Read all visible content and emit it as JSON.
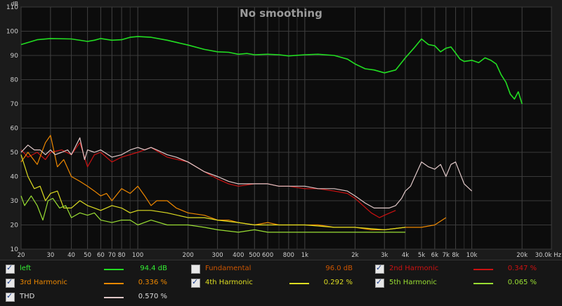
{
  "chart_data": {
    "type": "line",
    "title": "No smoothing",
    "ylabel": "dB",
    "xlabel": "Hz",
    "x_scale": "log",
    "xlim": [
      20,
      30000
    ],
    "ylim": [
      10,
      110
    ],
    "y_ticks": [
      10,
      20,
      30,
      40,
      50,
      60,
      70,
      80,
      90,
      100,
      110
    ],
    "x_ticks": [
      {
        "v": 20,
        "label": "20"
      },
      {
        "v": 30,
        "label": "30"
      },
      {
        "v": 40,
        "label": "40"
      },
      {
        "v": 50,
        "label": "50"
      },
      {
        "v": 60,
        "label": "60"
      },
      {
        "v": 70,
        "label": "70"
      },
      {
        "v": 80,
        "label": "80"
      },
      {
        "v": 100,
        "label": "100"
      },
      {
        "v": 200,
        "label": "200"
      },
      {
        "v": 300,
        "label": "300"
      },
      {
        "v": 400,
        "label": "400"
      },
      {
        "v": 500,
        "label": "500"
      },
      {
        "v": 600,
        "label": "600"
      },
      {
        "v": 800,
        "label": "800"
      },
      {
        "v": 1000,
        "label": "1k"
      },
      {
        "v": 2000,
        "label": "2k"
      },
      {
        "v": 3000,
        "label": "3k"
      },
      {
        "v": 4000,
        "label": "4k"
      },
      {
        "v": 5000,
        "label": "5k"
      },
      {
        "v": 6000,
        "label": "6k"
      },
      {
        "v": 7000,
        "label": "7k"
      },
      {
        "v": 8000,
        "label": "8k"
      },
      {
        "v": 10000,
        "label": "10k"
      },
      {
        "v": 20000,
        "label": "20k"
      },
      {
        "v": 30000,
        "label": "30.0k Hz"
      }
    ],
    "grid": true,
    "series": [
      {
        "name": "left",
        "color": "#22dd22",
        "x": [
          20,
          25,
          30,
          40,
          50,
          55,
          60,
          70,
          80,
          90,
          100,
          120,
          150,
          200,
          250,
          300,
          350,
          400,
          450,
          500,
          600,
          700,
          800,
          1000,
          1200,
          1500,
          1800,
          2000,
          2300,
          2600,
          3000,
          3500,
          4000,
          4500,
          5000,
          5500,
          6000,
          6500,
          7000,
          7500,
          8000,
          8500,
          9000,
          10000,
          11000,
          12000,
          13000,
          14000,
          15000,
          16000,
          17000,
          18000,
          19000,
          20000
        ],
        "y": [
          94.5,
          96.5,
          97,
          96.8,
          95.8,
          96.3,
          97,
          96.3,
          96.5,
          97.5,
          97.8,
          97.5,
          96.3,
          94.3,
          92.5,
          91.5,
          91.3,
          90.5,
          90.8,
          90.3,
          90.5,
          90.3,
          89.8,
          90.3,
          90.5,
          90,
          88.5,
          86.5,
          84.5,
          84,
          82.8,
          84,
          89,
          93,
          96.8,
          94.5,
          94,
          91.5,
          93,
          93.5,
          91,
          88.5,
          87.5,
          88,
          87,
          89,
          88,
          86.5,
          82,
          79,
          74,
          72,
          75,
          70
        ]
      },
      {
        "name": "2nd Harmonic",
        "color": "#cc1111",
        "x": [
          20,
          22,
          25,
          28,
          30,
          35,
          40,
          45,
          50,
          55,
          60,
          70,
          80,
          100,
          120,
          150,
          200,
          250,
          300,
          350,
          400,
          500,
          600,
          700,
          800,
          1000,
          1200,
          1500,
          1800,
          2000,
          2500,
          2800,
          3000,
          3500
        ],
        "y": [
          51,
          48,
          50,
          47,
          50,
          51,
          49,
          54,
          44,
          49,
          50,
          46,
          48,
          50,
          52,
          48,
          46,
          42,
          39,
          37,
          36,
          37,
          37,
          36,
          36,
          35,
          35,
          34,
          33,
          31,
          25,
          23,
          24,
          26
        ]
      },
      {
        "name": "3rd Harmonic",
        "color": "#ee8800",
        "x": [
          20,
          22,
          25,
          28,
          30,
          33,
          36,
          40,
          45,
          50,
          55,
          60,
          65,
          70,
          80,
          90,
          100,
          110,
          120,
          130,
          150,
          170,
          200,
          250,
          300,
          350,
          400,
          500,
          600,
          700,
          800,
          1000,
          1200,
          1500,
          2000,
          2500,
          3000,
          4000,
          5000,
          6000,
          7000
        ],
        "y": [
          46,
          50,
          45,
          54,
          57,
          44,
          47,
          40,
          38,
          36,
          34,
          32,
          33,
          30,
          35,
          33,
          36,
          32,
          28,
          30,
          30,
          27,
          25,
          24,
          22,
          22,
          21,
          20,
          21,
          20,
          20,
          20,
          20,
          19,
          19,
          18,
          18,
          19,
          19,
          20,
          23
        ]
      },
      {
        "name": "4th Harmonic",
        "color": "#dddd22",
        "x": [
          20,
          22,
          24,
          26,
          28,
          30,
          33,
          36,
          40,
          45,
          50,
          55,
          60,
          70,
          80,
          90,
          100,
          120,
          150,
          200,
          250,
          300,
          400,
          500,
          600,
          800,
          1000,
          1500,
          2000,
          3000,
          4000
        ],
        "y": [
          49,
          40,
          35,
          36,
          30,
          33,
          34,
          27,
          27,
          30,
          28,
          27,
          26,
          28,
          27,
          25,
          26,
          26,
          25,
          23,
          23,
          22,
          21,
          20,
          20,
          20,
          20,
          19,
          19,
          18,
          19
        ]
      },
      {
        "name": "5th Harmonic",
        "color": "#99dd33",
        "x": [
          20,
          21,
          23,
          25,
          27,
          29,
          31,
          34,
          37,
          40,
          45,
          50,
          55,
          60,
          70,
          80,
          90,
          100,
          120,
          150,
          200,
          250,
          300,
          400,
          500,
          600,
          800,
          1000,
          1500,
          2000,
          3000,
          4000
        ],
        "y": [
          32,
          28,
          32,
          28,
          22,
          30,
          31,
          27,
          28,
          23,
          25,
          24,
          25,
          22,
          21,
          22,
          22,
          20,
          22,
          20,
          20,
          19,
          18,
          17,
          18,
          17,
          17,
          17,
          17,
          17,
          17,
          17
        ]
      },
      {
        "name": "THD",
        "color": "#e0c8c8",
        "x": [
          20,
          22,
          24,
          26,
          28,
          30,
          32,
          35,
          38,
          40,
          45,
          48,
          50,
          55,
          60,
          70,
          80,
          90,
          100,
          110,
          120,
          130,
          150,
          170,
          200,
          250,
          300,
          350,
          400,
          450,
          500,
          600,
          700,
          800,
          1000,
          1200,
          1500,
          1800,
          2000,
          2300,
          2600,
          3000,
          3200,
          3500,
          3800,
          4000,
          4300,
          4500,
          5000,
          5500,
          6000,
          6500,
          7000,
          7500,
          8000,
          9000,
          10000
        ],
        "y": [
          50,
          53,
          51,
          51,
          49,
          51,
          49,
          50,
          51,
          49,
          56,
          47,
          51,
          50,
          51,
          48,
          49,
          51,
          52,
          51,
          52,
          51,
          49,
          48,
          46,
          42,
          40,
          38,
          37,
          37,
          37,
          37,
          36,
          36,
          36,
          35,
          35,
          34,
          32,
          29,
          27,
          27,
          27,
          28,
          31,
          34,
          36,
          39,
          46,
          44,
          43,
          45,
          40,
          45,
          46,
          37,
          34
        ]
      }
    ]
  },
  "legend": {
    "rows": [
      [
        {
          "label": "left",
          "checked": true,
          "label_color": "#33ee33",
          "color": "#22dd22",
          "value": "94.4 dB"
        },
        {
          "label": "Fundamental",
          "checked": false,
          "label_color": "#cc5500",
          "color": null,
          "value": "96.0 dB"
        },
        {
          "label": "2nd Harmonic",
          "checked": true,
          "label_color": "#cc1111",
          "color": "#cc1111",
          "value": "0.347 %"
        }
      ],
      [
        {
          "label": "3rd Harmonic",
          "checked": true,
          "label_color": "#ee8800",
          "color": "#ee8800",
          "value": "0.336 %"
        },
        {
          "label": "4th Harmonic",
          "checked": true,
          "label_color": "#dddd22",
          "color": "#dddd22",
          "value": "0.292 %"
        },
        {
          "label": "5th Harmonic",
          "checked": true,
          "label_color": "#99dd33",
          "color": "#99dd33",
          "value": "0.065 %"
        }
      ],
      [
        {
          "label": "THD",
          "checked": true,
          "label_color": "#dddddd",
          "color": "#e0c8c8",
          "value": "0.570 %"
        }
      ]
    ]
  }
}
